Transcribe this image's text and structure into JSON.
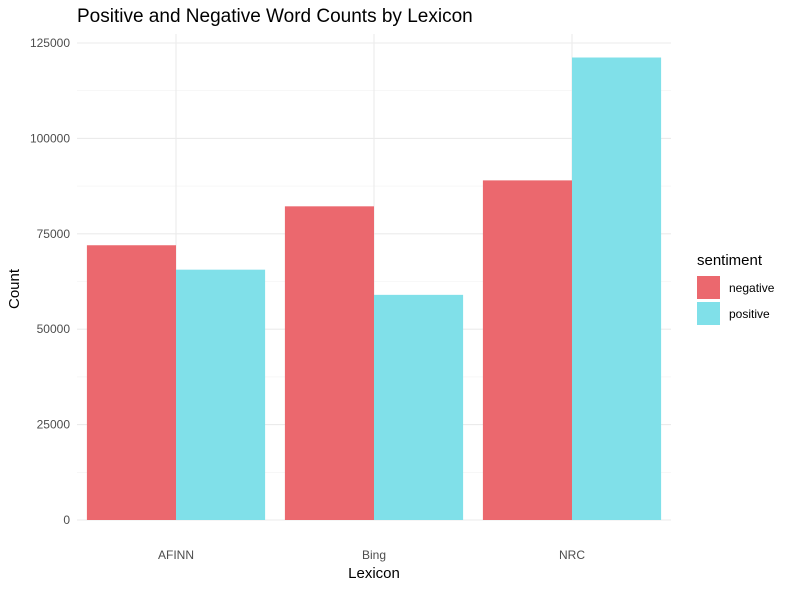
{
  "chart_data": {
    "type": "bar",
    "title": "Positive and Negative Word Counts by Lexicon",
    "xlabel": "Lexicon",
    "ylabel": "Count",
    "categories": [
      "AFINN",
      "Bing",
      "NRC"
    ],
    "series": [
      {
        "name": "negative",
        "color": "#EB686E",
        "values": [
          72000,
          82200,
          89000
        ]
      },
      {
        "name": "positive",
        "color": "#80E0E9",
        "values": [
          65600,
          59000,
          121200
        ]
      }
    ],
    "ylim": [
      0,
      125000
    ],
    "yticks": [
      0,
      25000,
      50000,
      75000,
      100000,
      125000
    ],
    "ytick_labels": [
      "0",
      "25000",
      "50000",
      "75000",
      "100000",
      "125000"
    ],
    "grid": true,
    "legend": {
      "title": "sentiment",
      "position": "right"
    }
  }
}
